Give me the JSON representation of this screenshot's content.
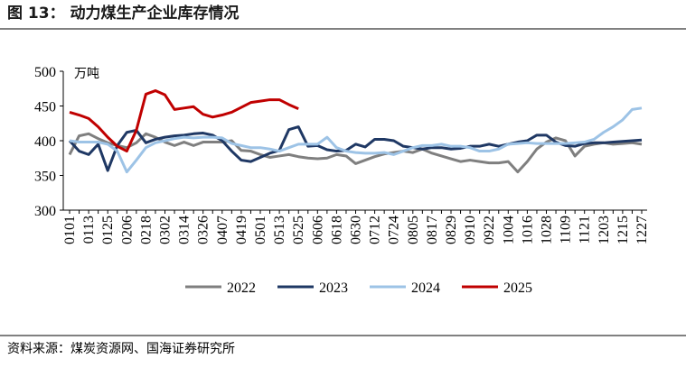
{
  "chart_data": {
    "type": "line",
    "title": "图 13：  动力煤生产企业库存情况",
    "unit_label": "万吨",
    "source": "资料来源：煤炭资源网、国海证券研究所",
    "categories": [
      "0101",
      null,
      "0113",
      null,
      "0125",
      null,
      "0206",
      null,
      "0218",
      null,
      "0302",
      null,
      "0314",
      null,
      "0326",
      null,
      "0407",
      null,
      "0419",
      null,
      "0501",
      null,
      "0513",
      null,
      "0525",
      null,
      "0606",
      null,
      "0618",
      null,
      "0630",
      null,
      "0712",
      null,
      "0724",
      null,
      "0805",
      null,
      "0817",
      null,
      "0829",
      null,
      "0910",
      null,
      "0922",
      null,
      "1004",
      null,
      "1016",
      null,
      "1028",
      null,
      "1109",
      null,
      "1121",
      null,
      "1203",
      null,
      "1215",
      null,
      "1227"
    ],
    "ylim": [
      300,
      500
    ],
    "yticks": [
      300,
      350,
      400,
      450,
      500
    ],
    "series": [
      {
        "name": "2022",
        "color": "#7f7f7f",
        "values": [
          380,
          407,
          410,
          403,
          397,
          393,
          390,
          397,
          410,
          405,
          398,
          393,
          398,
          393,
          398,
          398,
          398,
          400,
          386,
          385,
          380,
          376,
          378,
          380,
          377,
          375,
          374,
          375,
          380,
          378,
          367,
          372,
          377,
          381,
          383,
          385,
          383,
          388,
          382,
          378,
          374,
          370,
          372,
          370,
          368,
          368,
          370,
          355,
          370,
          388,
          398,
          404,
          400,
          378,
          392,
          395,
          397,
          395,
          396,
          397,
          395
        ]
      },
      {
        "name": "2023",
        "color": "#1f3864",
        "values": [
          400,
          385,
          380,
          395,
          357,
          393,
          412,
          415,
          397,
          402,
          405,
          407,
          408,
          410,
          411,
          408,
          400,
          385,
          372,
          370,
          376,
          382,
          386,
          416,
          420,
          392,
          393,
          387,
          385,
          386,
          395,
          391,
          402,
          402,
          400,
          392,
          390,
          388,
          390,
          390,
          388,
          389,
          392,
          392,
          395,
          392,
          395,
          398,
          400,
          408,
          408,
          398,
          393,
          392,
          396,
          397,
          397,
          398,
          399,
          400,
          401
        ]
      },
      {
        "name": "2024",
        "color": "#9dc3e6",
        "values": [
          400,
          398,
          398,
          398,
          395,
          385,
          355,
          372,
          390,
          397,
          400,
          403,
          405,
          404,
          405,
          405,
          404,
          396,
          393,
          390,
          390,
          388,
          385,
          390,
          395,
          395,
          395,
          405,
          390,
          385,
          383,
          382,
          382,
          383,
          380,
          385,
          390,
          393,
          393,
          395,
          392,
          392,
          390,
          385,
          385,
          388,
          395,
          396,
          397,
          396,
          396,
          396,
          396,
          397,
          398,
          402,
          412,
          420,
          430,
          445,
          447
        ]
      },
      {
        "name": "2025",
        "color": "#c00000",
        "values": [
          441,
          437,
          432,
          420,
          405,
          392,
          385,
          415,
          467,
          472,
          466,
          445,
          447,
          449,
          438,
          434,
          437,
          441,
          448,
          455,
          457,
          459,
          459,
          452,
          446,
          null,
          null,
          null,
          null,
          null,
          null,
          null,
          null,
          null,
          null,
          null,
          null,
          null,
          null,
          null,
          null,
          null,
          null,
          null,
          null,
          null,
          null,
          null,
          null,
          null,
          null,
          null,
          null,
          null,
          null,
          null,
          null,
          null,
          null,
          null,
          null
        ]
      }
    ]
  }
}
